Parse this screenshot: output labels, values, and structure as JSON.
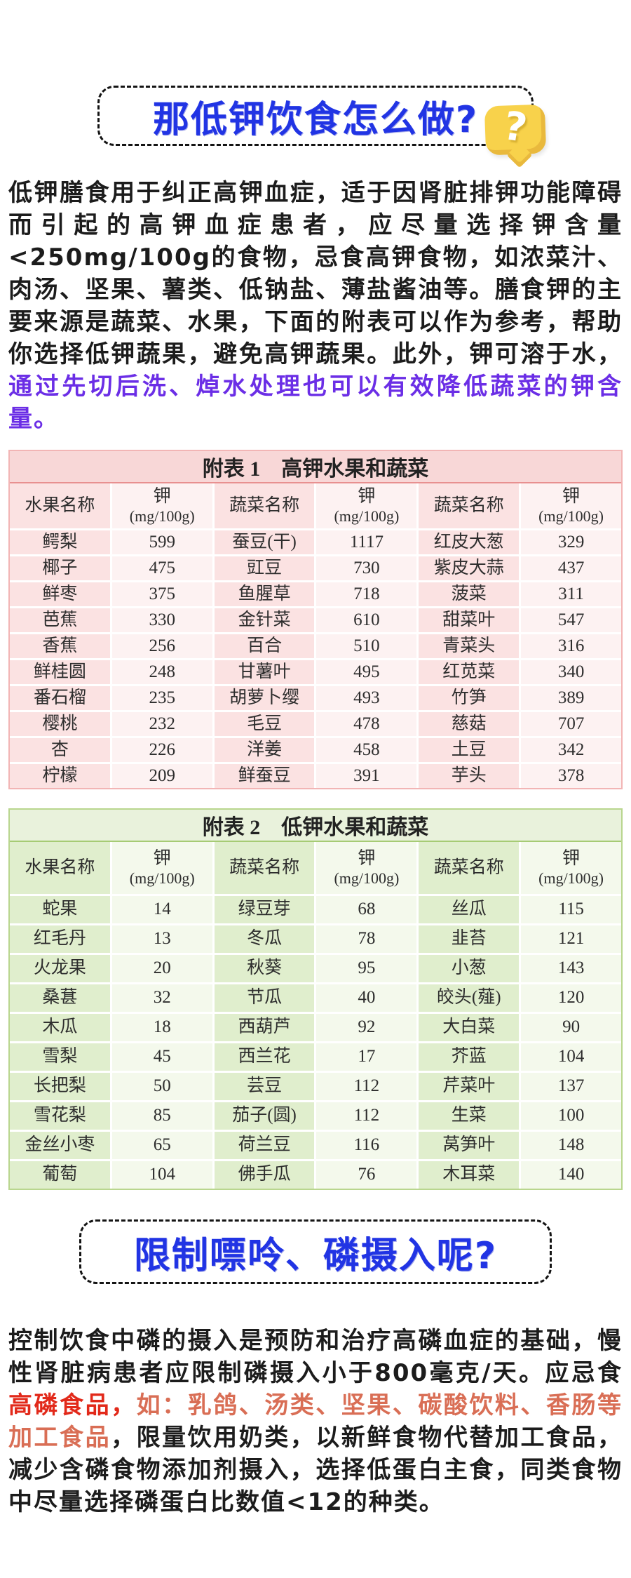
{
  "colors": {
    "title_blue": "#2134e4",
    "purple": "#6b2ee6",
    "red": "#e2291a",
    "salmon": "#d96e55",
    "text_black": "#1c1c1c",
    "bubble_yellow": "#f8d24b",
    "bubble_shadow": "#e9b93d",
    "t1_border": "#f2b5b5",
    "t1_title_bg": "#f8d7d7",
    "t1_line": "#e89090",
    "t1_name_bg": "#fbe2e2",
    "t1_val_bg": "#fdf2f2",
    "t2_border": "#b9d68e",
    "t2_title_bg": "#e9f2dc",
    "t2_line": "#a6cb74",
    "t2_name_bg": "#e0eecd",
    "t2_val_bg": "#f4f9ec"
  },
  "icons": {
    "question_mark": "?"
  },
  "section1": {
    "title": "那低钾饮食怎么做?",
    "paragraph": {
      "black_part": "低钾膳食用于纠正高钾血症，适于因肾脏排钾功能障碍而引起的高钾血症患者，应尽量选择钾含量<250mg/100g的食物，忌食高钾食物，如浓菜汁、肉汤、坚果、薯类、低钠盐、薄盐酱油等。膳食钾的主要来源是蔬菜、水果，下面的附表可以作为参考，帮助你选择低钾蔬果，避免高钾蔬果。此外，钾可溶于水，",
      "purple_part": "通过先切后洗、焯水处理也可以有效降低蔬菜的钾含量。"
    }
  },
  "table1": {
    "title": "附表 1　高钾水果和蔬菜",
    "columns": [
      {
        "label": "水果名称"
      },
      {
        "label": "钾",
        "unit": "(mg/100g)"
      },
      {
        "label": "蔬菜名称"
      },
      {
        "label": "钾",
        "unit": "(mg/100g)"
      },
      {
        "label": "蔬菜名称"
      },
      {
        "label": "钾",
        "unit": "(mg/100g)"
      }
    ],
    "rows": [
      [
        "鳄梨",
        "599",
        "蚕豆(干)",
        "1117",
        "红皮大葱",
        "329"
      ],
      [
        "椰子",
        "475",
        "豇豆",
        "730",
        "紫皮大蒜",
        "437"
      ],
      [
        "鲜枣",
        "375",
        "鱼腥草",
        "718",
        "菠菜",
        "311"
      ],
      [
        "芭蕉",
        "330",
        "金针菜",
        "610",
        "甜菜叶",
        "547"
      ],
      [
        "香蕉",
        "256",
        "百合",
        "510",
        "青菜头",
        "316"
      ],
      [
        "鲜桂圆",
        "248",
        "甘薯叶",
        "495",
        "红苋菜",
        "340"
      ],
      [
        "番石榴",
        "235",
        "胡萝卜缨",
        "493",
        "竹笋",
        "389"
      ],
      [
        "樱桃",
        "232",
        "毛豆",
        "478",
        "慈菇",
        "707"
      ],
      [
        "杏",
        "226",
        "洋姜",
        "458",
        "土豆",
        "342"
      ],
      [
        "柠檬",
        "209",
        "鲜蚕豆",
        "391",
        "芋头",
        "378"
      ]
    ]
  },
  "table2": {
    "title": "附表 2　低钾水果和蔬菜",
    "columns": [
      {
        "label": "水果名称"
      },
      {
        "label": "钾",
        "unit": "(mg/100g)"
      },
      {
        "label": "蔬菜名称"
      },
      {
        "label": "钾",
        "unit": "(mg/100g)"
      },
      {
        "label": "蔬菜名称"
      },
      {
        "label": "钾",
        "unit": "(mg/100g)"
      }
    ],
    "rows": [
      [
        "蛇果",
        "14",
        "绿豆芽",
        "68",
        "丝瓜",
        "115"
      ],
      [
        "红毛丹",
        "13",
        "冬瓜",
        "78",
        "韭苔",
        "121"
      ],
      [
        "火龙果",
        "20",
        "秋葵",
        "95",
        "小葱",
        "143"
      ],
      [
        "桑葚",
        "32",
        "节瓜",
        "40",
        "皎头(薤)",
        "120"
      ],
      [
        "木瓜",
        "18",
        "西葫芦",
        "92",
        "大白菜",
        "90"
      ],
      [
        "雪梨",
        "45",
        "西兰花",
        "17",
        "芥蓝",
        "104"
      ],
      [
        "长把梨",
        "50",
        "芸豆",
        "112",
        "芹菜叶",
        "137"
      ],
      [
        "雪花梨",
        "85",
        "茄子(圆)",
        "112",
        "生菜",
        "100"
      ],
      [
        "金丝小枣",
        "65",
        "荷兰豆",
        "116",
        "莴笋叶",
        "148"
      ],
      [
        "葡萄",
        "104",
        "佛手瓜",
        "76",
        "木耳菜",
        "140"
      ]
    ]
  },
  "section2": {
    "title": "限制嘌呤、磷摄入呢?",
    "paragraph": {
      "part1_black": "控制饮食中磷的摄入是预防和治疗高磷血症的基础，慢性肾脏病患者应限制磷摄入小于800毫克/天。应忌食",
      "part2_red": "高磷食品，",
      "part3_salmon": "如：乳鸽、汤类、坚果、碳酸饮料、香肠等加工食品",
      "part4_black": "，限量饮用奶类，以新鲜食物代替加工食品，减少含磷食物添加剂摄入，选择低蛋白主食，同类食物中尽量选择磷蛋白比数值<12的种类。"
    }
  }
}
